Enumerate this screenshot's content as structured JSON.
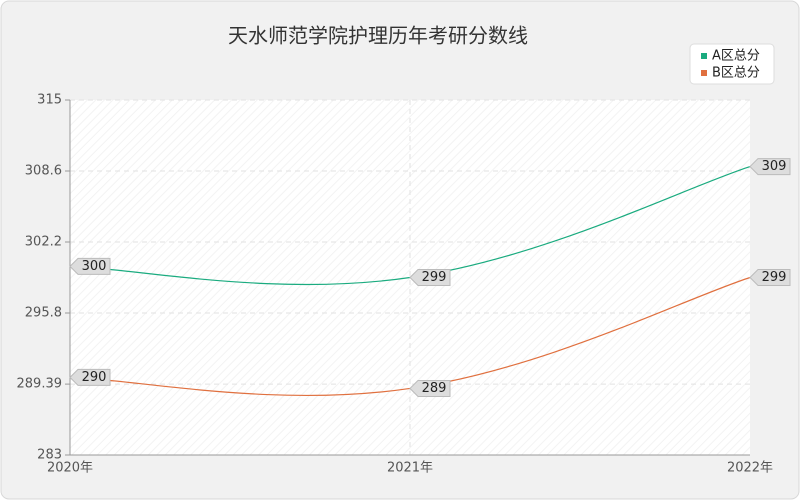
{
  "chart_data": {
    "type": "line",
    "title": "天水师范学院护理历年考研分数线",
    "categories": [
      "2020年",
      "2021年",
      "2022年"
    ],
    "series": [
      {
        "name": "A区总分",
        "color": "#1aab7f",
        "values": [
          300,
          299,
          309
        ]
      },
      {
        "name": "B区总分",
        "color": "#e0703f",
        "values": [
          290,
          289,
          299
        ]
      }
    ],
    "ylim": [
      283,
      315
    ],
    "yticks": [
      283,
      289.39,
      295.8,
      302.2,
      308.6,
      315
    ],
    "grid": true,
    "legend": "top-right"
  }
}
